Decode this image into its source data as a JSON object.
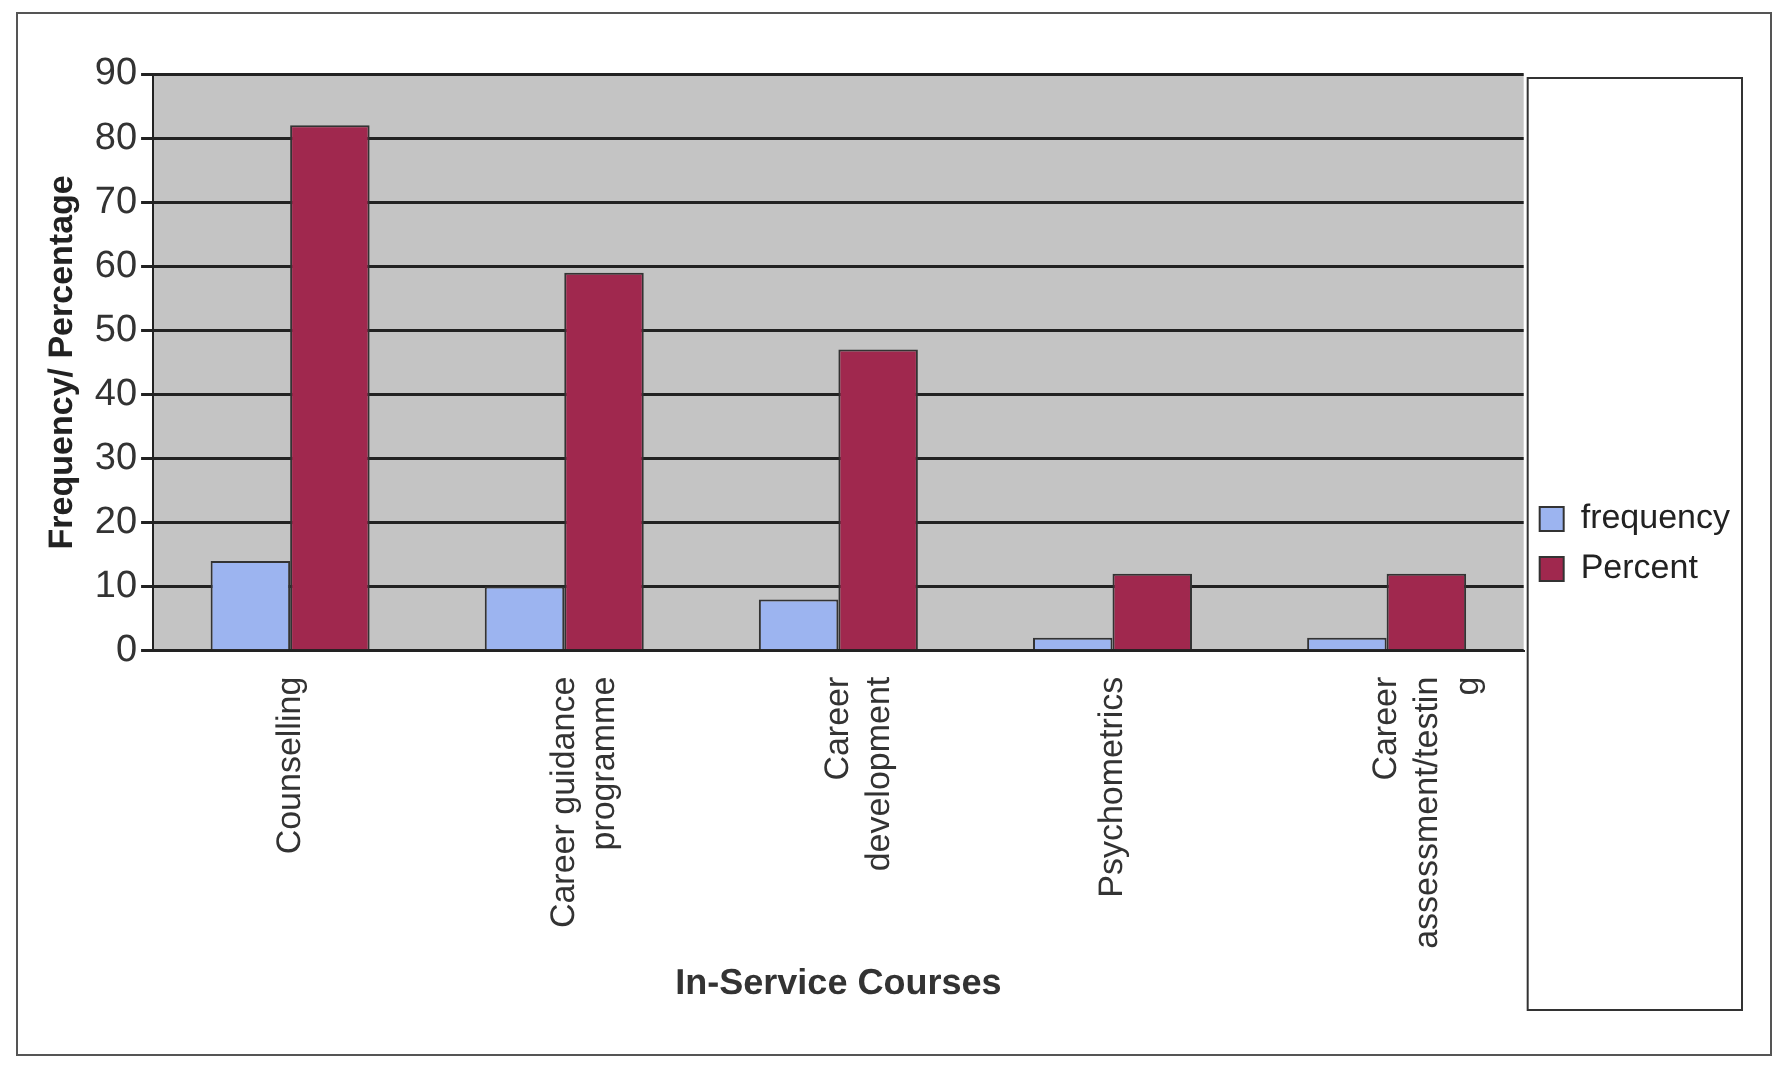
{
  "chart_data": {
    "type": "bar",
    "xlabel": "In-Service Courses",
    "ylabel": "Frequency/ Percentage",
    "categories": [
      "Counselling",
      "Career guidance programme",
      "Career development",
      "Psychometrics",
      "Career assessment/testing"
    ],
    "series": [
      {
        "name": "frequency",
        "color": "#9cb4f0",
        "values": [
          14,
          10,
          8,
          2,
          2
        ]
      },
      {
        "name": "Percent",
        "color": "#a0284e",
        "values": [
          82,
          59,
          47,
          12,
          12
        ]
      }
    ],
    "ylim": [
      0,
      90
    ],
    "yticks": [
      0,
      10,
      20,
      30,
      40,
      50,
      60,
      70,
      80,
      90
    ],
    "grid": "y",
    "legend": "right"
  }
}
